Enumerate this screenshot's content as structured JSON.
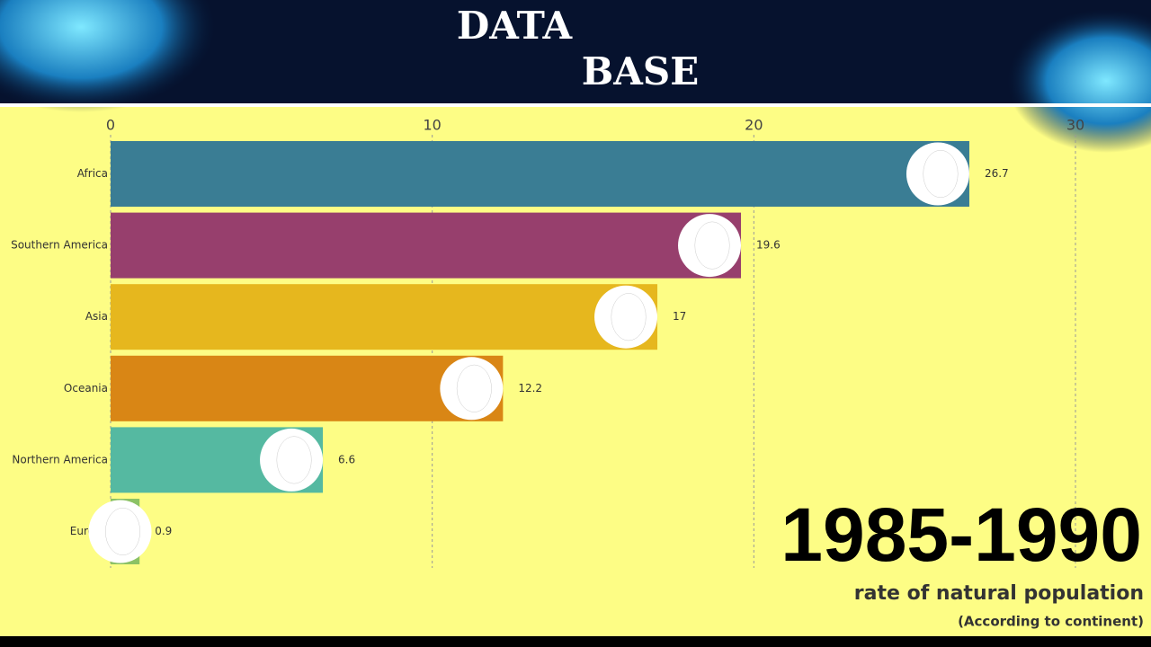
{
  "header": {
    "line1": "DATA",
    "line2": "BASE"
  },
  "chart_data": {
    "type": "bar",
    "orientation": "horizontal",
    "period": "1985-1990",
    "subtitle": "rate of natural population",
    "note": "(According to continent)",
    "categories": [
      "Africa",
      "Southern America",
      "Asia",
      "Oceania",
      "Northern America",
      "Europe"
    ],
    "values": [
      26.7,
      19.6,
      17,
      12.2,
      6.6,
      0.9
    ],
    "colors": [
      "#3a7d94",
      "#973f6d",
      "#e6b71e",
      "#d98615",
      "#55b9a1",
      "#8cc265"
    ],
    "xlim": [
      0,
      30
    ],
    "xticks": [
      0,
      10,
      20,
      30
    ],
    "grid": true
  }
}
